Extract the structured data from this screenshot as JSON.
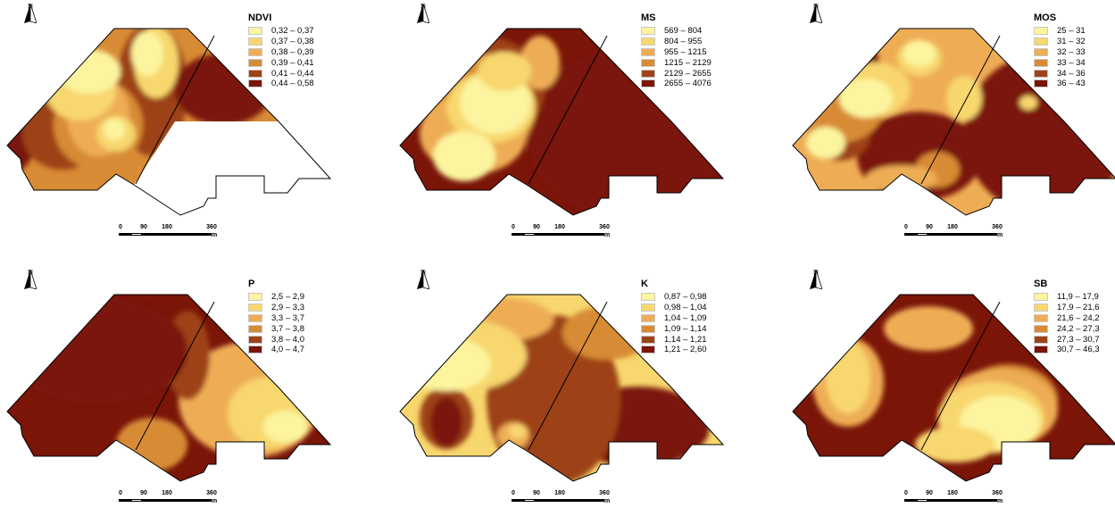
{
  "north_letter": "N",
  "scale": {
    "labels": [
      "0",
      "90",
      "180",
      "360"
    ],
    "unit": "m"
  },
  "colors": {
    "palette": [
      "#fcf49e",
      "#f8d76e",
      "#eead55",
      "#d88b35",
      "#9d4319",
      "#7a1508"
    ],
    "boundary": "#000000",
    "no_data": "#ffffff"
  },
  "maps": [
    {
      "title": "NDVI",
      "classes": [
        "0,32 – 0,37",
        "0,37 – 0,38",
        "0,38 – 0,39",
        "0,39 – 0,41",
        "0,41 – 0,44",
        "0,44 – 0,58"
      ],
      "base_class": 3
    },
    {
      "title": "MS",
      "classes": [
        "569 – 804",
        "804 – 955",
        "955 – 1215",
        "1215 – 2129",
        "2129 – 2655",
        "2655 – 4076"
      ],
      "base_class": 5
    },
    {
      "title": "MOS",
      "classes": [
        "25 – 31",
        "31 – 32",
        "32 – 33",
        "33 – 34",
        "34 – 36",
        "36 – 43"
      ],
      "base_class": 2
    },
    {
      "title": "P",
      "classes": [
        "2,5 – 2,9",
        "2,9 – 3,3",
        "3,3 – 3,7",
        "3,7 – 3,8",
        "3,8 – 4,0",
        "4,0 – 4,7"
      ],
      "base_class": 5
    },
    {
      "title": "K",
      "classes": [
        "0,87 – 0,98",
        "0,98 – 1,04",
        "1,04 – 1,09",
        "1,09 – 1,14",
        "1,14 – 1,21",
        "1,21 – 2,60"
      ],
      "base_class": 1
    },
    {
      "title": "SB",
      "classes": [
        "11,9 – 17,9",
        "17,9 – 21,6",
        "21,6 – 24,2",
        "24,2 – 27,3",
        "27,3 – 30,7",
        "30,7 – 46,3"
      ],
      "base_class": 5
    }
  ]
}
